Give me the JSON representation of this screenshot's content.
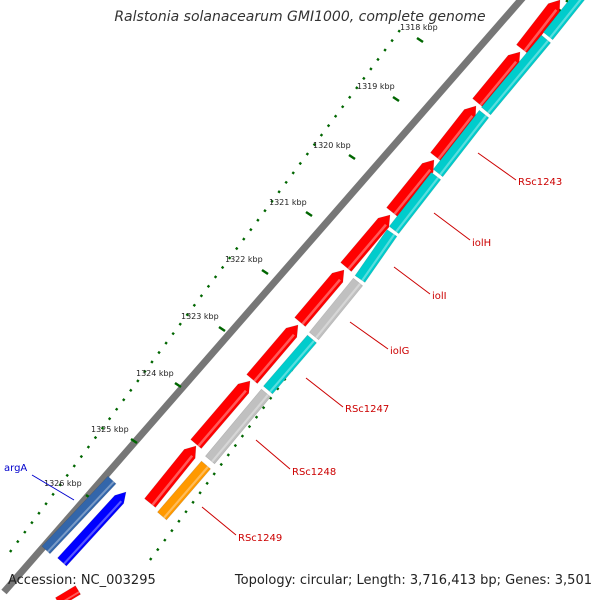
{
  "title": "Ralstonia solanacearum GMI1000, complete genome",
  "footer": {
    "accession": "Accession: NC_003295",
    "summary": "Topology: circular; Length: 3,716,413 bp; Genes: 3,501"
  },
  "scale": {
    "ticks": [
      {
        "label": "1318 kbp"
      },
      {
        "label": "1319 kbp"
      },
      {
        "label": "1320 kbp"
      },
      {
        "label": "1321 kbp"
      },
      {
        "label": "1322 kbp"
      },
      {
        "label": "1323 kbp"
      },
      {
        "label": "1324 kbp"
      },
      {
        "label": "1325 kbp"
      },
      {
        "label": "1326 kbp"
      }
    ]
  },
  "gene_labels": {
    "outer": [
      {
        "label": "argA",
        "color": "#0000cc"
      }
    ],
    "inner": [
      {
        "label": "RSc1243"
      },
      {
        "label": "iolH"
      },
      {
        "label": "iolI"
      },
      {
        "label": "iolG"
      },
      {
        "label": "RSc1247"
      },
      {
        "label": "RSc1248"
      },
      {
        "label": "RSc1249"
      }
    ]
  },
  "colors": {
    "forward_cds": "#ff0000",
    "reverse_cds": "#00cccc",
    "reverse_other": "#c0c0c0",
    "orange_feature": "#ff9900",
    "outer_feature_a": "#3366aa",
    "outer_feature_b": "#0000ff",
    "tick_color": "#006600",
    "inner_label_color": "#cc0000",
    "outer_label_color": "#0000cc",
    "backbone": "#777777"
  }
}
